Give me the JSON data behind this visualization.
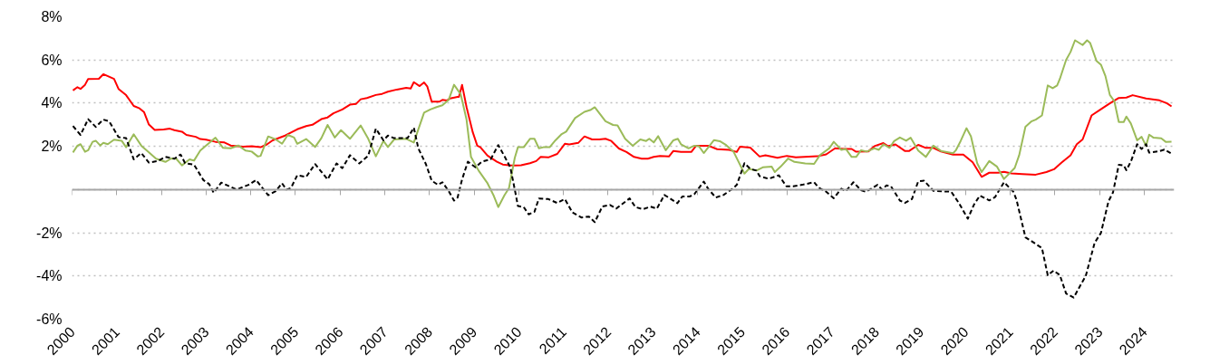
{
  "chart_data": {
    "type": "line",
    "xlim": [
      2000,
      2024.67
    ],
    "ylim": [
      -6,
      8
    ],
    "xticks": [
      2000,
      2001,
      2002,
      2003,
      2004,
      2005,
      2006,
      2007,
      2008,
      2009,
      2010,
      2011,
      2012,
      2013,
      2014,
      2015,
      2016,
      2017,
      2018,
      2019,
      2020,
      2021,
      2022,
      2023,
      2024
    ],
    "yticks": [
      {
        "value": -6,
        "label": "-6%"
      },
      {
        "value": -4,
        "label": "-4%"
      },
      {
        "value": -2,
        "label": "-2%"
      },
      {
        "value": 0,
        "label": null
      },
      {
        "value": 2,
        "label": "2%"
      },
      {
        "value": 4,
        "label": "4%"
      },
      {
        "value": 6,
        "label": "6%"
      },
      {
        "value": 8,
        "label": "8%"
      }
    ],
    "grid": "y",
    "series": [
      {
        "color": "#ff0000",
        "line_style": "solid",
        "x": [
          2000.02,
          2000.12,
          2000.19,
          2000.29,
          2000.36,
          2000.6,
          2000.7,
          2000.94,
          2001.04,
          2001.21,
          2001.38,
          2001.51,
          2001.61,
          2001.72,
          2001.85,
          2002.05,
          2002.19,
          2002.29,
          2002.46,
          2002.56,
          2002.77,
          2002.87,
          2003.0,
          2003.21,
          2003.41,
          2003.55,
          2003.82,
          2004.02,
          2004.22,
          2004.36,
          2004.49,
          2004.77,
          2005.04,
          2005.24,
          2005.38,
          2005.58,
          2005.72,
          2005.85,
          2006.05,
          2006.22,
          2006.36,
          2006.46,
          2006.6,
          2006.8,
          2006.94,
          2007.07,
          2007.27,
          2007.48,
          2007.58,
          2007.65,
          2007.78,
          2007.88,
          2007.95,
          2008.05,
          2008.22,
          2008.29,
          2008.39,
          2008.46,
          2008.63,
          2008.66,
          2008.73,
          2008.83,
          2008.97,
          2009.07,
          2009.14,
          2009.3,
          2009.51,
          2009.64,
          2009.78,
          2009.91,
          2010.05,
          2010.25,
          2010.39,
          2010.49,
          2010.66,
          2010.86,
          2011.03,
          2011.13,
          2011.33,
          2011.47,
          2011.64,
          2011.8,
          2011.94,
          2012.07,
          2012.24,
          2012.41,
          2012.58,
          2012.75,
          2012.89,
          2013.02,
          2013.16,
          2013.36,
          2013.46,
          2013.63,
          2013.86,
          2013.97,
          2014.24,
          2014.44,
          2014.71,
          2014.88,
          2014.95,
          2015.18,
          2015.39,
          2015.52,
          2015.79,
          2016.0,
          2016.2,
          2016.68,
          2016.88,
          2017.08,
          2017.28,
          2017.45,
          2017.55,
          2017.82,
          2017.96,
          2018.16,
          2018.26,
          2018.43,
          2018.64,
          2018.74,
          2018.94,
          2019.11,
          2019.28,
          2019.45,
          2019.72,
          2019.95,
          2020.16,
          2020.36,
          2020.53,
          2020.73,
          2020.86,
          2021.03,
          2021.27,
          2021.57,
          2021.81,
          2021.98,
          2022.15,
          2022.35,
          2022.49,
          2022.62,
          2022.82,
          2023.03,
          2023.23,
          2023.43,
          2023.6,
          2023.74,
          2024.04,
          2024.34,
          2024.51,
          2024.61
        ],
        "values": [
          4.59,
          4.74,
          4.66,
          4.85,
          5.12,
          5.13,
          5.34,
          5.12,
          4.66,
          4.37,
          3.87,
          3.76,
          3.59,
          3.01,
          2.76,
          2.78,
          2.82,
          2.75,
          2.68,
          2.53,
          2.44,
          2.34,
          2.31,
          2.21,
          2.18,
          2.04,
          1.99,
          2.01,
          1.96,
          2.09,
          2.28,
          2.5,
          2.79,
          2.94,
          3.0,
          3.26,
          3.34,
          3.53,
          3.71,
          3.93,
          3.97,
          4.18,
          4.24,
          4.38,
          4.43,
          4.53,
          4.63,
          4.71,
          4.68,
          4.97,
          4.79,
          4.96,
          4.78,
          4.07,
          4.07,
          4.15,
          4.12,
          4.22,
          4.29,
          4.29,
          4.85,
          3.82,
          2.65,
          2.03,
          1.96,
          1.57,
          1.29,
          1.16,
          1.13,
          1.12,
          1.13,
          1.22,
          1.32,
          1.51,
          1.49,
          1.65,
          2.12,
          2.09,
          2.16,
          2.46,
          2.32,
          2.32,
          2.35,
          2.25,
          1.9,
          1.74,
          1.51,
          1.43,
          1.43,
          1.51,
          1.56,
          1.53,
          1.79,
          1.74,
          1.74,
          2.03,
          2.03,
          1.87,
          1.84,
          1.74,
          1.99,
          1.94,
          1.53,
          1.59,
          1.47,
          1.56,
          1.49,
          1.54,
          1.63,
          1.91,
          1.88,
          1.88,
          1.75,
          1.76,
          2.01,
          2.15,
          2.01,
          2.09,
          1.79,
          1.79,
          2.07,
          1.93,
          1.93,
          1.76,
          1.62,
          1.62,
          1.26,
          0.59,
          0.78,
          0.78,
          0.82,
          0.75,
          0.72,
          0.69,
          0.81,
          0.94,
          1.25,
          1.59,
          2.1,
          2.32,
          3.43,
          3.72,
          3.99,
          4.24,
          4.26,
          4.37,
          4.22,
          4.13,
          3.99,
          3.85
        ]
      },
      {
        "color": "#9bbb59",
        "line_style": "solid",
        "x": [
          2000.02,
          2000.12,
          2000.19,
          2000.29,
          2000.36,
          2000.46,
          2000.53,
          2000.63,
          2000.7,
          2000.8,
          2000.94,
          2001.11,
          2001.21,
          2001.38,
          2001.55,
          2001.72,
          2001.88,
          2002.09,
          2002.22,
          2002.33,
          2002.46,
          2002.63,
          2002.73,
          2002.87,
          2003.0,
          2003.21,
          2003.38,
          2003.55,
          2003.72,
          2003.88,
          2004.02,
          2004.16,
          2004.22,
          2004.39,
          2004.56,
          2004.7,
          2004.83,
          2004.97,
          2005.04,
          2005.24,
          2005.44,
          2005.58,
          2005.72,
          2005.88,
          2006.02,
          2006.22,
          2006.46,
          2006.63,
          2006.8,
          2006.97,
          2007.07,
          2007.21,
          2007.48,
          2007.65,
          2007.88,
          2008.02,
          2008.16,
          2008.29,
          2008.43,
          2008.55,
          2008.7,
          2008.83,
          2008.93,
          2009.1,
          2009.3,
          2009.44,
          2009.54,
          2009.68,
          2009.78,
          2009.91,
          2009.98,
          2010.11,
          2010.25,
          2010.35,
          2010.45,
          2010.55,
          2010.69,
          2010.82,
          2010.96,
          2011.06,
          2011.26,
          2011.47,
          2011.6,
          2011.7,
          2011.94,
          2012.11,
          2012.21,
          2012.38,
          2012.55,
          2012.72,
          2012.85,
          2012.92,
          2013.02,
          2013.12,
          2013.29,
          2013.46,
          2013.56,
          2013.63,
          2013.8,
          2013.93,
          2014.03,
          2014.14,
          2014.37,
          2014.5,
          2014.64,
          2014.81,
          2015.05,
          2015.15,
          2015.32,
          2015.46,
          2015.66,
          2015.73,
          2015.86,
          2016.03,
          2016.17,
          2016.41,
          2016.61,
          2016.74,
          2016.95,
          2017.05,
          2017.22,
          2017.32,
          2017.45,
          2017.55,
          2017.66,
          2017.79,
          2017.96,
          2018.06,
          2018.16,
          2018.3,
          2018.4,
          2018.53,
          2018.67,
          2018.77,
          2018.94,
          2019.11,
          2019.28,
          2019.45,
          2019.72,
          2019.78,
          2019.89,
          2020.02,
          2020.12,
          2020.26,
          2020.36,
          2020.53,
          2020.7,
          2020.86,
          2021.1,
          2021.2,
          2021.34,
          2021.47,
          2021.57,
          2021.71,
          2021.84,
          2021.95,
          2022.05,
          2022.11,
          2022.25,
          2022.35,
          2022.45,
          2022.62,
          2022.72,
          2022.79,
          2022.93,
          2023.03,
          2023.13,
          2023.23,
          2023.33,
          2023.43,
          2023.54,
          2023.6,
          2023.7,
          2023.84,
          2023.94,
          2024.04,
          2024.11,
          2024.21,
          2024.38,
          2024.48,
          2024.61
        ],
        "values": [
          1.72,
          2.03,
          2.1,
          1.75,
          1.82,
          2.21,
          2.26,
          2.04,
          2.16,
          2.1,
          2.31,
          2.26,
          1.96,
          2.56,
          2.03,
          1.72,
          1.43,
          1.28,
          1.44,
          1.43,
          1.12,
          1.4,
          1.34,
          1.81,
          2.04,
          2.4,
          1.93,
          1.91,
          2.04,
          1.81,
          1.76,
          1.53,
          1.56,
          2.46,
          2.32,
          2.12,
          2.53,
          2.41,
          2.12,
          2.34,
          1.97,
          2.38,
          2.99,
          2.41,
          2.75,
          2.35,
          2.97,
          2.35,
          1.54,
          2.25,
          1.97,
          2.32,
          2.35,
          2.18,
          3.56,
          3.71,
          3.82,
          3.9,
          4.15,
          4.85,
          4.41,
          3.24,
          1.51,
          0.88,
          0.29,
          -0.29,
          -0.81,
          -0.26,
          0.07,
          1.47,
          1.96,
          1.96,
          2.35,
          2.35,
          1.91,
          1.96,
          1.96,
          2.28,
          2.57,
          2.68,
          3.31,
          3.6,
          3.68,
          3.81,
          3.16,
          2.99,
          2.97,
          2.35,
          2.03,
          2.32,
          2.25,
          2.35,
          2.18,
          2.47,
          1.82,
          2.28,
          2.35,
          2.1,
          1.91,
          2.03,
          2.01,
          1.69,
          2.29,
          2.24,
          2.06,
          1.74,
          0.74,
          0.96,
          0.88,
          1.03,
          1.06,
          0.81,
          1.06,
          1.44,
          1.28,
          1.21,
          1.19,
          1.59,
          1.91,
          2.21,
          1.84,
          1.88,
          1.51,
          1.51,
          1.82,
          1.76,
          1.91,
          1.84,
          2.1,
          1.93,
          2.24,
          2.41,
          2.26,
          2.4,
          1.81,
          1.51,
          2.03,
          1.79,
          1.68,
          1.81,
          2.25,
          2.84,
          2.47,
          1.22,
          0.81,
          1.32,
          1.07,
          0.49,
          1.0,
          1.59,
          2.91,
          3.15,
          3.24,
          3.43,
          4.82,
          4.69,
          4.82,
          5.12,
          6.0,
          6.37,
          6.91,
          6.69,
          6.91,
          6.78,
          5.96,
          5.78,
          5.26,
          4.38,
          4.09,
          3.13,
          3.13,
          3.38,
          3.06,
          2.28,
          2.44,
          2.03,
          2.54,
          2.4,
          2.37,
          2.21,
          2.22
        ]
      },
      {
        "color": "#000000",
        "line_style": "dashed",
        "x": [
          2000.02,
          2000.19,
          2000.36,
          2000.53,
          2000.7,
          2000.83,
          2001.04,
          2001.21,
          2001.38,
          2001.55,
          2001.72,
          2001.92,
          2002.09,
          2002.29,
          2002.43,
          2002.53,
          2002.73,
          2002.94,
          2003.07,
          2003.17,
          2003.34,
          2003.68,
          2003.95,
          2004.12,
          2004.39,
          2004.56,
          2004.7,
          2004.8,
          2004.9,
          2005.04,
          2005.24,
          2005.44,
          2005.72,
          2005.92,
          2006.05,
          2006.22,
          2006.43,
          2006.63,
          2006.8,
          2006.97,
          2007.07,
          2007.21,
          2007.51,
          2007.65,
          2007.75,
          2007.92,
          2008.05,
          2008.19,
          2008.29,
          2008.43,
          2008.55,
          2008.63,
          2008.73,
          2008.86,
          2009.03,
          2009.17,
          2009.37,
          2009.54,
          2009.68,
          2009.81,
          2009.91,
          2009.98,
          2010.11,
          2010.22,
          2010.35,
          2010.45,
          2010.66,
          2010.86,
          2011.03,
          2011.2,
          2011.4,
          2011.57,
          2011.7,
          2011.87,
          2012.04,
          2012.18,
          2012.48,
          2012.61,
          2012.78,
          2012.95,
          2013.09,
          2013.26,
          2013.43,
          2013.55,
          2013.66,
          2013.83,
          2013.93,
          2014.07,
          2014.14,
          2014.24,
          2014.41,
          2014.58,
          2014.78,
          2014.88,
          2015.05,
          2015.18,
          2015.32,
          2015.39,
          2015.59,
          2015.82,
          2015.99,
          2016.14,
          2016.34,
          2016.61,
          2016.71,
          2016.88,
          2017.05,
          2017.22,
          2017.32,
          2017.49,
          2017.66,
          2017.76,
          2017.89,
          2018.03,
          2018.13,
          2018.23,
          2018.33,
          2018.53,
          2018.64,
          2018.8,
          2018.94,
          2019.07,
          2019.28,
          2019.68,
          2019.85,
          2020.05,
          2020.19,
          2020.32,
          2020.53,
          2020.66,
          2020.86,
          2021.07,
          2021.14,
          2021.34,
          2021.47,
          2021.71,
          2021.84,
          2021.97,
          2022.11,
          2022.25,
          2022.42,
          2022.55,
          2022.69,
          2022.89,
          2023.03,
          2023.2,
          2023.3,
          2023.43,
          2023.54,
          2023.6,
          2023.7,
          2023.84,
          2023.94,
          2024.04,
          2024.11,
          2024.34,
          2024.45,
          2024.61
        ],
        "values": [
          2.94,
          2.53,
          3.26,
          2.9,
          3.24,
          3.16,
          2.43,
          2.38,
          1.4,
          1.69,
          1.25,
          1.32,
          1.51,
          1.43,
          1.62,
          1.22,
          1.15,
          0.44,
          0.25,
          -0.15,
          0.32,
          0.0,
          0.22,
          0.44,
          -0.26,
          -0.07,
          0.29,
          0.0,
          0.07,
          0.66,
          0.59,
          1.18,
          0.47,
          1.21,
          0.99,
          1.59,
          1.21,
          1.57,
          2.82,
          2.28,
          2.5,
          2.38,
          2.38,
          2.87,
          1.91,
          1.18,
          0.41,
          0.22,
          0.34,
          -0.07,
          -0.51,
          -0.37,
          0.47,
          1.29,
          1.03,
          1.29,
          1.4,
          2.06,
          1.54,
          1.03,
          0.0,
          -0.76,
          -0.81,
          -1.15,
          -1.03,
          -0.41,
          -0.44,
          -0.62,
          -0.44,
          -1.06,
          -1.29,
          -1.25,
          -1.51,
          -0.78,
          -0.71,
          -0.88,
          -0.41,
          -0.81,
          -0.91,
          -0.79,
          -0.88,
          -0.25,
          -0.47,
          -0.63,
          -0.32,
          -0.32,
          -0.21,
          0.18,
          0.37,
          0.03,
          -0.37,
          -0.25,
          0.03,
          0.22,
          1.22,
          0.96,
          0.88,
          0.62,
          0.5,
          0.66,
          0.15,
          0.15,
          0.22,
          0.34,
          0.09,
          -0.1,
          -0.4,
          0.04,
          -0.07,
          0.34,
          -0.03,
          -0.1,
          0.04,
          0.22,
          0.0,
          0.19,
          0.15,
          -0.51,
          -0.62,
          -0.44,
          0.38,
          0.41,
          -0.06,
          -0.1,
          -0.62,
          -1.35,
          -0.69,
          -0.28,
          -0.5,
          -0.35,
          0.34,
          -0.1,
          -0.47,
          -2.21,
          -2.38,
          -2.71,
          -3.97,
          -3.75,
          -3.96,
          -4.81,
          -5.0,
          -4.51,
          -4.0,
          -2.46,
          -2.01,
          -0.54,
          -0.13,
          1.15,
          1.12,
          0.9,
          1.29,
          2.1,
          1.88,
          2.1,
          1.71,
          1.78,
          1.85,
          1.66
        ]
      }
    ]
  }
}
